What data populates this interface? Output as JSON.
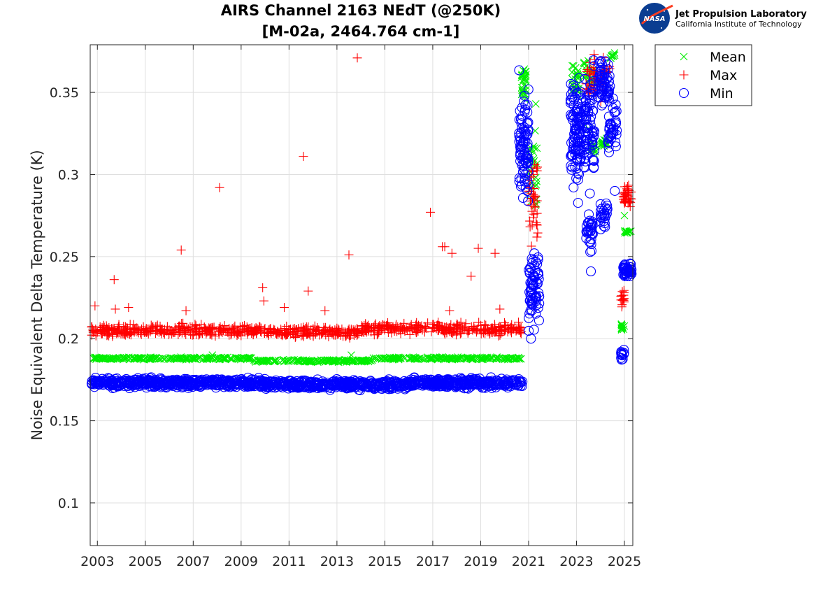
{
  "logo": {
    "nasa_text": "NASA",
    "org_name": "Jet Propulsion Laboratory",
    "org_sub": "California Institute of Technology"
  },
  "chart_data": {
    "type": "scatter",
    "title": [
      "AIRS Channel 2163 NEdT (@250K)",
      "[M-02a, 2464.764 cm-1]"
    ],
    "xlabel": "",
    "ylabel": "Noise Equivalent Delta Temperature (K)",
    "xlim": [
      2002.7,
      2025.35
    ],
    "ylim": [
      0.074,
      0.379
    ],
    "xticks": [
      2003,
      2005,
      2007,
      2009,
      2011,
      2013,
      2015,
      2017,
      2019,
      2021,
      2023,
      2025
    ],
    "xtick_labels": [
      "2003",
      "2005",
      "2007",
      "2009",
      "2011",
      "2013",
      "2015",
      "2017",
      "2019",
      "2021",
      "2023",
      "2025"
    ],
    "yticks": [
      0.1,
      0.15,
      0.2,
      0.25,
      0.3,
      0.35
    ],
    "ytick_labels": [
      "0.1",
      "0.15",
      "0.2",
      "0.25",
      "0.3",
      "0.35"
    ],
    "grid": true,
    "legend_position": "outside-top-right",
    "series": [
      {
        "name": "Mean",
        "marker": "x",
        "color": "#00ee00",
        "segments": [
          {
            "x0": 2002.75,
            "x1": 2003.5,
            "center": 0.188,
            "spread": 0.001,
            "n": 25
          },
          {
            "x0": 2003.5,
            "x1": 2009.5,
            "center": 0.188,
            "spread": 0.001,
            "n": 190
          },
          {
            "x0": 2009.5,
            "x1": 2014.5,
            "center": 0.1865,
            "spread": 0.001,
            "n": 160
          },
          {
            "x0": 2014.5,
            "x1": 2020.75,
            "center": 0.188,
            "spread": 0.001,
            "n": 190
          },
          {
            "x0": 2020.7,
            "x1": 2020.9,
            "center": 0.355,
            "spread": 0.015,
            "n": 30
          },
          {
            "x0": 2021.0,
            "x1": 2021.35,
            "center": 0.3,
            "spread": 0.035,
            "n": 30
          },
          {
            "x0": 2022.8,
            "x1": 2023.1,
            "center": 0.355,
            "spread": 0.015,
            "n": 30
          },
          {
            "x0": 2023.3,
            "x1": 2023.75,
            "center": 0.36,
            "spread": 0.014,
            "n": 30
          },
          {
            "x0": 2023.6,
            "x1": 2023.8,
            "center": 0.315,
            "spread": 0.006,
            "n": 16
          },
          {
            "x0": 2024.05,
            "x1": 2024.3,
            "center": 0.32,
            "spread": 0.006,
            "n": 16
          },
          {
            "x0": 2024.4,
            "x1": 2024.6,
            "center": 0.372,
            "spread": 0.003,
            "n": 10
          },
          {
            "x0": 2024.85,
            "x1": 2025.0,
            "center": 0.207,
            "spread": 0.004,
            "n": 12
          },
          {
            "x0": 2024.9,
            "x1": 2025.3,
            "center": 0.265,
            "spread": 0.001,
            "n": 14
          }
        ],
        "points": [
          [
            2007.8,
            0.19
          ],
          [
            2013.6,
            0.19
          ],
          [
            2021.3,
            0.343
          ],
          [
            2021.35,
            0.316
          ],
          [
            2023.5,
            0.328
          ],
          [
            2025.0,
            0.275
          ]
        ]
      },
      {
        "name": "Max",
        "marker": "+",
        "color": "#ff0000",
        "segments": [
          {
            "x0": 2002.75,
            "x1": 2010.0,
            "center": 0.205,
            "spread": 0.005,
            "n": 330
          },
          {
            "x0": 2010.0,
            "x1": 2014.0,
            "center": 0.204,
            "spread": 0.005,
            "n": 180
          },
          {
            "x0": 2014.0,
            "x1": 2020.75,
            "center": 0.206,
            "spread": 0.005,
            "n": 300
          },
          {
            "x0": 2021.0,
            "x1": 2021.4,
            "center": 0.285,
            "spread": 0.04,
            "n": 40
          },
          {
            "x0": 2023.4,
            "x1": 2024.4,
            "center": 0.36,
            "spread": 0.018,
            "n": 55
          },
          {
            "x0": 2024.85,
            "x1": 2025.0,
            "center": 0.225,
            "spread": 0.008,
            "n": 16
          },
          {
            "x0": 2024.95,
            "x1": 2025.3,
            "center": 0.287,
            "spread": 0.009,
            "n": 40
          }
        ],
        "points": [
          [
            2002.9,
            0.22
          ],
          [
            2003.7,
            0.236
          ],
          [
            2003.75,
            0.218
          ],
          [
            2004.3,
            0.219
          ],
          [
            2006.5,
            0.254
          ],
          [
            2006.7,
            0.217
          ],
          [
            2008.1,
            0.292
          ],
          [
            2009.9,
            0.231
          ],
          [
            2009.95,
            0.223
          ],
          [
            2010.8,
            0.219
          ],
          [
            2011.6,
            0.311
          ],
          [
            2011.8,
            0.229
          ],
          [
            2012.5,
            0.217
          ],
          [
            2013.5,
            0.251
          ],
          [
            2013.85,
            0.371
          ],
          [
            2016.9,
            0.277
          ],
          [
            2017.4,
            0.256
          ],
          [
            2017.5,
            0.256
          ],
          [
            2017.8,
            0.252
          ],
          [
            2018.6,
            0.238
          ],
          [
            2018.9,
            0.255
          ],
          [
            2019.6,
            0.252
          ],
          [
            2019.8,
            0.218
          ],
          [
            2017.7,
            0.217
          ]
        ]
      },
      {
        "name": "Min",
        "marker": "o",
        "color": "#0000ff",
        "segments": [
          {
            "x0": 2002.75,
            "x1": 2010.0,
            "center": 0.173,
            "spread": 0.004,
            "n": 500
          },
          {
            "x0": 2010.0,
            "x1": 2016.0,
            "center": 0.172,
            "spread": 0.004,
            "n": 420
          },
          {
            "x0": 2016.0,
            "x1": 2020.75,
            "center": 0.173,
            "spread": 0.004,
            "n": 330
          },
          {
            "x0": 2020.6,
            "x1": 2021.0,
            "center": 0.32,
            "spread": 0.05,
            "n": 90
          },
          {
            "x0": 2021.0,
            "x1": 2021.45,
            "center": 0.23,
            "spread": 0.03,
            "n": 70
          },
          {
            "x0": 2022.75,
            "x1": 2023.2,
            "center": 0.325,
            "spread": 0.045,
            "n": 110
          },
          {
            "x0": 2023.3,
            "x1": 2023.75,
            "center": 0.33,
            "spread": 0.045,
            "n": 80
          },
          {
            "x0": 2023.4,
            "x1": 2023.7,
            "center": 0.265,
            "spread": 0.018,
            "n": 30
          },
          {
            "x0": 2023.9,
            "x1": 2024.4,
            "center": 0.355,
            "spread": 0.02,
            "n": 60
          },
          {
            "x0": 2024.0,
            "x1": 2024.3,
            "center": 0.275,
            "spread": 0.015,
            "n": 25
          },
          {
            "x0": 2024.3,
            "x1": 2024.7,
            "center": 0.33,
            "spread": 0.025,
            "n": 40
          },
          {
            "x0": 2024.85,
            "x1": 2025.0,
            "center": 0.19,
            "spread": 0.004,
            "n": 12
          },
          {
            "x0": 2024.95,
            "x1": 2025.3,
            "center": 0.241,
            "spread": 0.006,
            "n": 45
          }
        ],
        "points": [
          [
            2023.6,
            0.241
          ],
          [
            2024.6,
            0.29
          ],
          [
            2021.1,
            0.2
          ]
        ]
      }
    ]
  }
}
